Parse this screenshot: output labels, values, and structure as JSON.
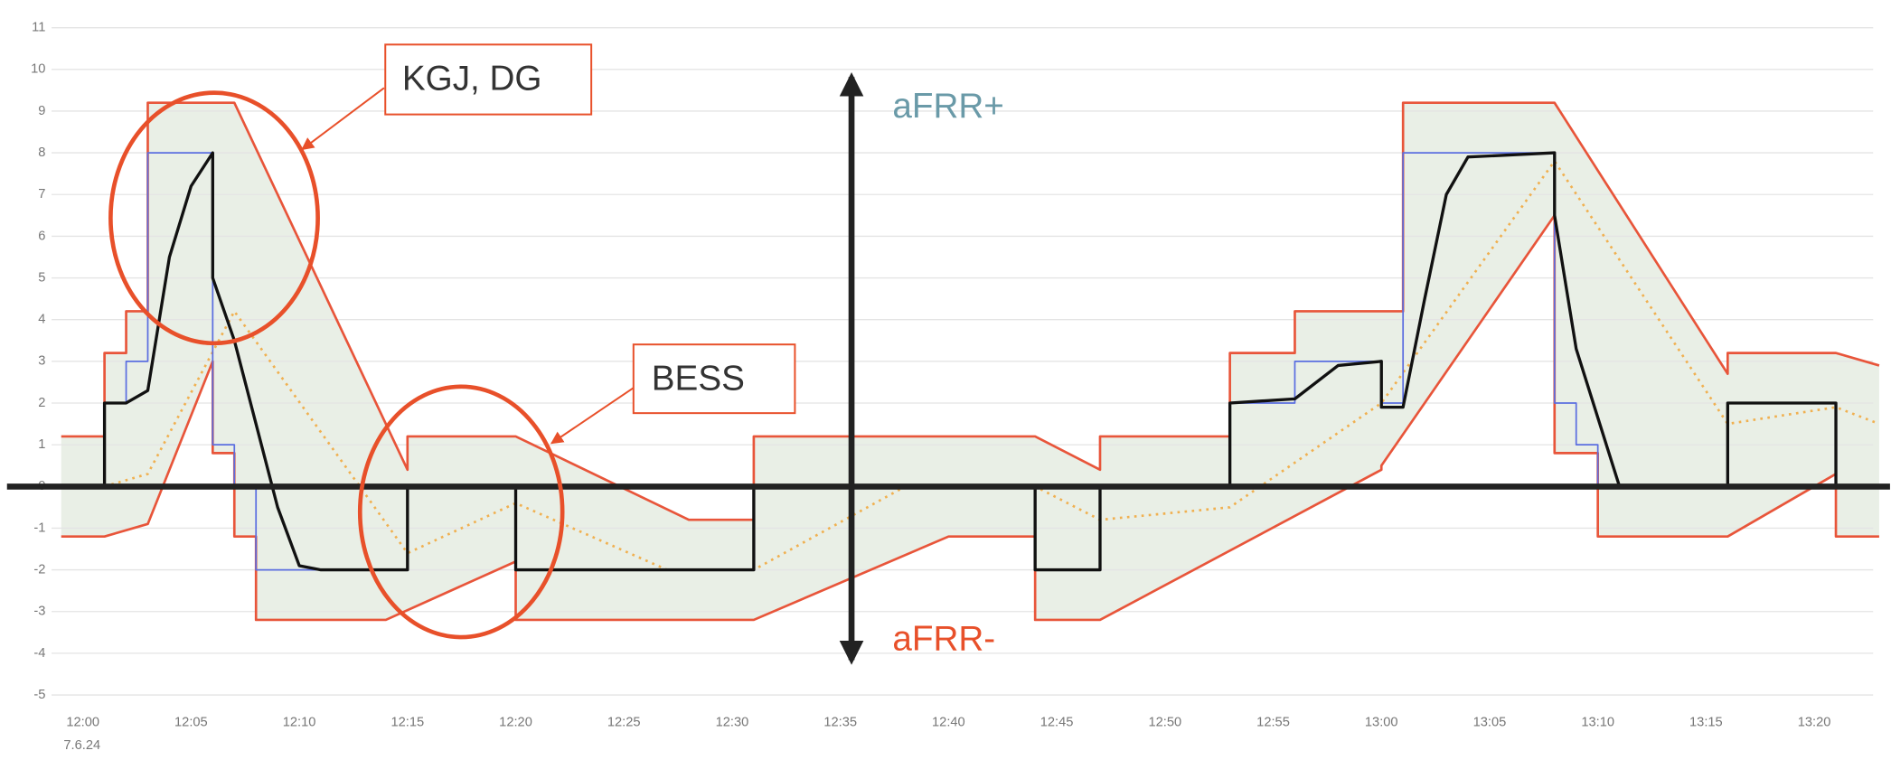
{
  "chart_data": {
    "type": "line",
    "xlim": [
      "11:59",
      "13:23"
    ],
    "xticks": [
      "12:00",
      "12:05",
      "12:10",
      "12:15",
      "12:20",
      "12:25",
      "12:30",
      "12:35",
      "12:40",
      "12:45",
      "12:50",
      "12:55",
      "13:00",
      "13:05",
      "13:10",
      "13:15",
      "13:20"
    ],
    "x_date_label": "7.6.24",
    "ylim": [
      -5,
      11
    ],
    "yticks": [
      -5,
      -4,
      -3,
      -2,
      -1,
      0,
      1,
      2,
      3,
      4,
      5,
      6,
      7,
      8,
      9,
      10,
      11
    ],
    "grid": true,
    "band_color": "#e9efe6",
    "series": [
      {
        "color": "#e8553a",
        "x": [
          "11:59",
          "12:01",
          "12:01",
          "12:02",
          "12:02",
          "12:03",
          "12:03",
          "12:07",
          "12:15",
          "12:15",
          "12:20",
          "12:28",
          "12:31",
          "12:31",
          "12:44",
          "12:47",
          "12:47",
          "12:53",
          "12:53",
          "12:56",
          "12:56",
          "13:01",
          "13:01",
          "13:08",
          "13:16",
          "13:16",
          "13:21",
          "13:23"
        ],
        "values": [
          1.2,
          1.2,
          3.2,
          3.2,
          4.2,
          4.2,
          9.2,
          9.2,
          0.4,
          1.2,
          1.2,
          -0.8,
          -0.8,
          1.2,
          1.2,
          0.4,
          1.2,
          1.2,
          3.2,
          3.2,
          4.2,
          4.2,
          9.2,
          9.2,
          2.7,
          3.2,
          3.2,
          2.9
        ]
      },
      {
        "color": "#e8553a",
        "x": [
          "11:59",
          "12:01",
          "12:03",
          "12:06",
          "12:06",
          "12:07",
          "12:07",
          "12:08",
          "12:08",
          "12:14",
          "12:20",
          "12:20",
          "12:31",
          "12:40",
          "12:44",
          "12:44",
          "12:47",
          "13:00",
          "13:00",
          "13:08",
          "13:08",
          "13:10",
          "13:10",
          "13:16",
          "13:21",
          "13:21",
          "13:23"
        ],
        "values": [
          -1.2,
          -1.2,
          -0.9,
          3.0,
          0.8,
          0.8,
          -1.2,
          -1.2,
          -3.2,
          -3.2,
          -1.8,
          -3.2,
          -3.2,
          -1.2,
          -1.2,
          -3.2,
          -3.2,
          0.4,
          0.5,
          6.5,
          0.8,
          0.8,
          -1.2,
          -1.2,
          0.3,
          -1.2,
          -1.2
        ]
      },
      {
        "color": "#f0b050",
        "dashed": true,
        "x": [
          "12:01",
          "12:03",
          "12:07",
          "12:15",
          "12:20",
          "12:27",
          "12:31",
          "12:38",
          "12:44",
          "12:47",
          "12:53",
          "13:00",
          "13:08",
          "13:16",
          "13:21",
          "13:23"
        ],
        "values": [
          0,
          0.3,
          4.2,
          -1.6,
          -0.4,
          -2,
          -2,
          0,
          0,
          -0.8,
          -0.5,
          2,
          7.8,
          1.5,
          1.9,
          1.5
        ]
      },
      {
        "color": "#5b6ee0",
        "x": [
          "11:59",
          "12:01",
          "12:01",
          "12:02",
          "12:02",
          "12:03",
          "12:03",
          "12:06",
          "12:06",
          "12:07",
          "12:07",
          "12:08",
          "12:08",
          "12:15",
          "12:15",
          "12:20",
          "12:20",
          "12:31",
          "12:31",
          "12:44",
          "12:44",
          "12:47",
          "12:47",
          "12:53",
          "12:53",
          "12:56",
          "12:56",
          "13:00",
          "13:00",
          "13:01",
          "13:01",
          "13:08",
          "13:08",
          "13:09",
          "13:09",
          "13:10",
          "13:10",
          "13:16",
          "13:16",
          "13:21",
          "13:21",
          "13:23"
        ],
        "values": [
          0,
          0,
          2,
          2,
          3,
          3,
          8,
          8,
          1,
          1,
          0,
          0,
          -2,
          -2,
          0,
          0,
          -2,
          -2,
          0,
          0,
          -2,
          -2,
          0,
          0,
          2,
          2,
          3,
          3,
          2,
          2,
          8,
          8,
          2,
          2,
          1,
          1,
          0,
          0,
          2,
          2,
          0,
          0
        ]
      },
      {
        "color": "#111111",
        "x": [
          "11:59",
          "12:01",
          "12:01",
          "12:02",
          "12:03",
          "12:04",
          "12:05",
          "12:06",
          "12:06",
          "12:07",
          "12:08",
          "12:09",
          "12:10",
          "12:11",
          "12:15",
          "12:15",
          "12:20",
          "12:20",
          "12:31",
          "12:31",
          "12:44",
          "12:44",
          "12:47",
          "12:47",
          "12:53",
          "12:53",
          "12:56",
          "12:58",
          "13:00",
          "13:00",
          "13:01",
          "13:02",
          "13:03",
          "13:04",
          "13:08",
          "13:08",
          "13:09",
          "13:11",
          "13:16",
          "13:16",
          "13:21",
          "13:21",
          "13:23"
        ],
        "values": [
          0,
          0,
          2,
          2,
          2.3,
          5.5,
          7.2,
          8,
          5,
          3.5,
          1.5,
          -0.5,
          -1.9,
          -2,
          -2,
          0,
          0,
          -2,
          -2,
          0,
          0,
          -2,
          -2,
          0,
          0,
          2,
          2.1,
          2.9,
          3,
          1.9,
          1.9,
          4.5,
          7,
          7.9,
          8,
          6.5,
          3.3,
          0,
          0,
          2,
          2,
          0,
          0
        ]
      }
    ],
    "annotations": [
      "KGJ, DG",
      "BESS",
      "aFRR+",
      "aFRR-"
    ]
  }
}
